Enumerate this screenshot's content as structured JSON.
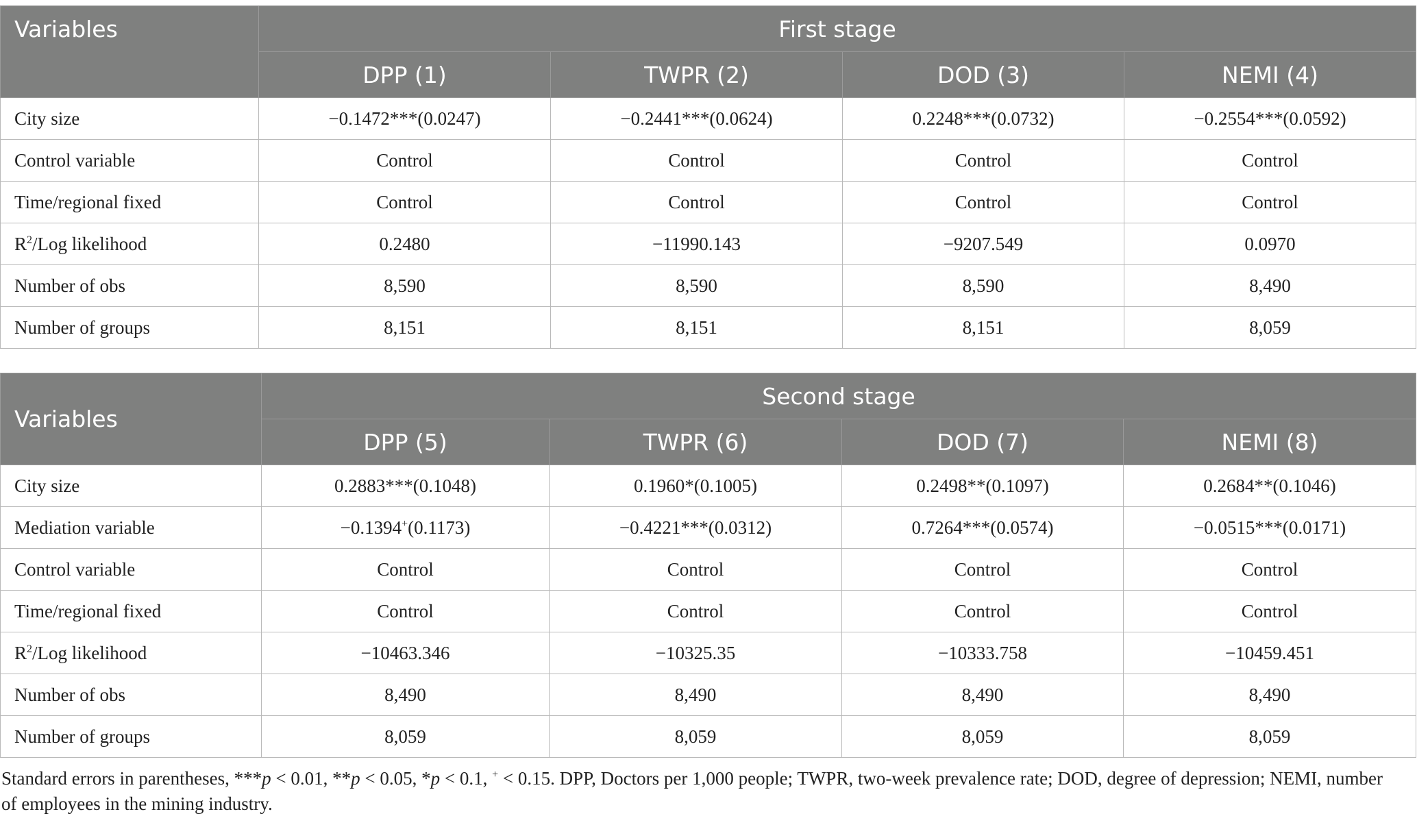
{
  "table1": {
    "var_header": "Variables",
    "stage": "First stage",
    "columns": [
      "DPP (1)",
      "TWPR (2)",
      "DOD (3)",
      "NEMI (4)"
    ],
    "rows": [
      {
        "label": "City size",
        "values": [
          "−0.1472***(0.0247)",
          "−0.2441***(0.0624)",
          "0.2248***(0.0732)",
          "−0.2554***(0.0592)"
        ]
      },
      {
        "label": "Control variable",
        "values": [
          "Control",
          "Control",
          "Control",
          "Control"
        ]
      },
      {
        "label": "Time/regional fixed",
        "values": [
          "Control",
          "Control",
          "Control",
          "Control"
        ]
      },
      {
        "label_r": "R",
        "label_sup": "2",
        "label_rest": "/Log likelihood",
        "values": [
          "0.2480",
          "−11990.143",
          "−9207.549",
          "0.0970"
        ]
      },
      {
        "label": "Number of obs",
        "values": [
          "8,590",
          "8,590",
          "8,590",
          "8,490"
        ]
      },
      {
        "label": "Number of groups",
        "values": [
          "8,151",
          "8,151",
          "8,151",
          "8,059"
        ]
      }
    ]
  },
  "table2": {
    "var_header": "Variables",
    "stage": "Second stage",
    "columns": [
      "DPP (5)",
      "TWPR (6)",
      "DOD (7)",
      "NEMI (8)"
    ],
    "rows": [
      {
        "label": "City size",
        "values": [
          "0.2883***(0.1048)",
          "0.1960*(0.1005)",
          "0.2498**(0.1097)",
          "0.2684**(0.1046)"
        ]
      },
      {
        "label": "Mediation variable",
        "values": [
          "−0.1394",
          "−0.4221***(0.0312)",
          "0.7264***(0.0574)",
          "−0.0515***(0.0171)"
        ],
        "first_sup": "+",
        "first_rest": "(0.1173)"
      },
      {
        "label": "Control variable",
        "values": [
          "Control",
          "Control",
          "Control",
          "Control"
        ]
      },
      {
        "label": "Time/regional fixed",
        "values": [
          "Control",
          "Control",
          "Control",
          "Control"
        ]
      },
      {
        "label_r": "R",
        "label_sup": "2",
        "label_rest": "/Log likelihood",
        "values": [
          "−10463.346",
          "−10325.35",
          "−10333.758",
          "−10459.451"
        ]
      },
      {
        "label": "Number of obs",
        "values": [
          "8,490",
          "8,490",
          "8,490",
          "8,490"
        ]
      },
      {
        "label": "Number of groups",
        "values": [
          "8,059",
          "8,059",
          "8,059",
          "8,059"
        ]
      }
    ]
  },
  "caption": {
    "p1": "Standard errors in parentheses, ***",
    "p2": "p",
    "p3": " < 0.01, **",
    "p4": "p",
    "p5": " < 0.05, *",
    "p6": "p",
    "p7": " < 0.1, ",
    "p8": "+",
    "p9": " < 0.15. DPP, Doctors per 1,000 people; TWPR, two-week prevalence rate; DOD, degree of depression; NEMI, number of employees in the mining industry."
  }
}
